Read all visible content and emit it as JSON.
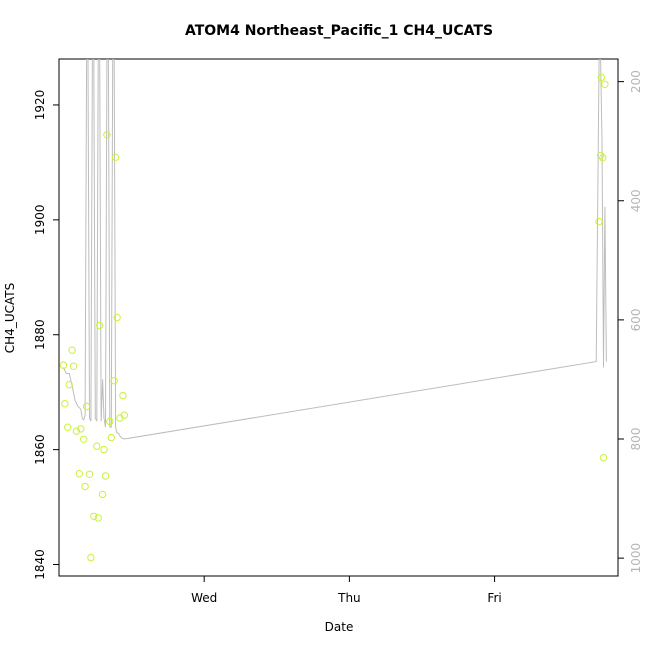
{
  "chart_data": {
    "type": "scatter",
    "title": "ATOM4 Northeast_Pacific_1 CH4_UCATS",
    "xlabel": "Date",
    "ylabel": "CH4_UCATS",
    "x_ticks": [
      "Wed",
      "Thu",
      "Fri"
    ],
    "y_ticks": [
      1840,
      1860,
      1880,
      1900,
      1920
    ],
    "ylim": [
      1838,
      1928
    ],
    "y2_ticks": [
      200,
      400,
      600,
      800,
      1000
    ],
    "y2lim": [
      1030,
      162
    ],
    "y2_reversed": true,
    "grid": false,
    "colors": {
      "points": "#c8f23c",
      "pressure_line": "#bdbdbd",
      "axis": "#000000",
      "right_axis_text": "#b5b5b5"
    },
    "x_range_days": [
      -1.0,
      2.85
    ],
    "series": [
      {
        "kind": "points",
        "x": [
          -0.97,
          -0.96,
          -0.94,
          -0.93,
          -0.91,
          -0.9,
          -0.88,
          -0.86,
          -0.85,
          -0.83,
          -0.82,
          -0.81,
          -0.79,
          -0.78,
          -0.76,
          -0.74,
          -0.73,
          -0.72,
          -0.7,
          -0.69,
          -0.68,
          -0.67,
          -0.65,
          -0.64,
          -0.62,
          -0.61,
          -0.6,
          -0.58,
          -0.56,
          -0.55,
          2.72,
          2.73,
          2.735,
          2.745,
          2.75,
          2.76
        ],
        "y": [
          1874.7,
          1868.0,
          1863.9,
          1871.3,
          1877.3,
          1874.5,
          1863.2,
          1855.8,
          1863.6,
          1861.8,
          1853.6,
          1867.5,
          1855.7,
          1841.2,
          1848.4,
          1860.6,
          1848.1,
          1881.6,
          1852.2,
          1860.0,
          1855.4,
          1914.8,
          1864.9,
          1862.1,
          1872.0,
          1910.9,
          1883.0,
          1865.5,
          1869.4,
          1866.0,
          1899.7,
          1911.2,
          1924.8,
          1910.8,
          1858.6,
          1923.6
        ]
      },
      {
        "kind": "line",
        "axis": "right",
        "x": [
          -0.97,
          -0.95,
          -0.93,
          -0.91,
          -0.89,
          -0.87,
          -0.85,
          -0.84,
          -0.83,
          -0.82,
          -0.81,
          -0.8,
          -0.79,
          -0.78,
          -0.77,
          -0.76,
          -0.75,
          -0.74,
          -0.73,
          -0.72,
          -0.71,
          -0.7,
          -0.69,
          -0.68,
          -0.67,
          -0.66,
          -0.65,
          -0.64,
          -0.63,
          -0.62,
          -0.61,
          -0.6,
          -0.59,
          -0.58,
          -0.57,
          -0.55,
          2.7,
          2.72,
          2.73,
          2.74,
          2.75,
          2.76,
          2.77
        ],
        "y": [
          680,
          690,
          690,
          710,
          735,
          745,
          750,
          765,
          768,
          760,
          160,
          162,
          765,
          770,
          160,
          162,
          765,
          770,
          160,
          162,
          770,
          700,
          765,
          780,
          160,
          162,
          780,
          780,
          160,
          162,
          780,
          790,
          790,
          795,
          798,
          800,
          670,
          160,
          162,
          300,
          680,
          410,
          670
        ]
      }
    ]
  }
}
